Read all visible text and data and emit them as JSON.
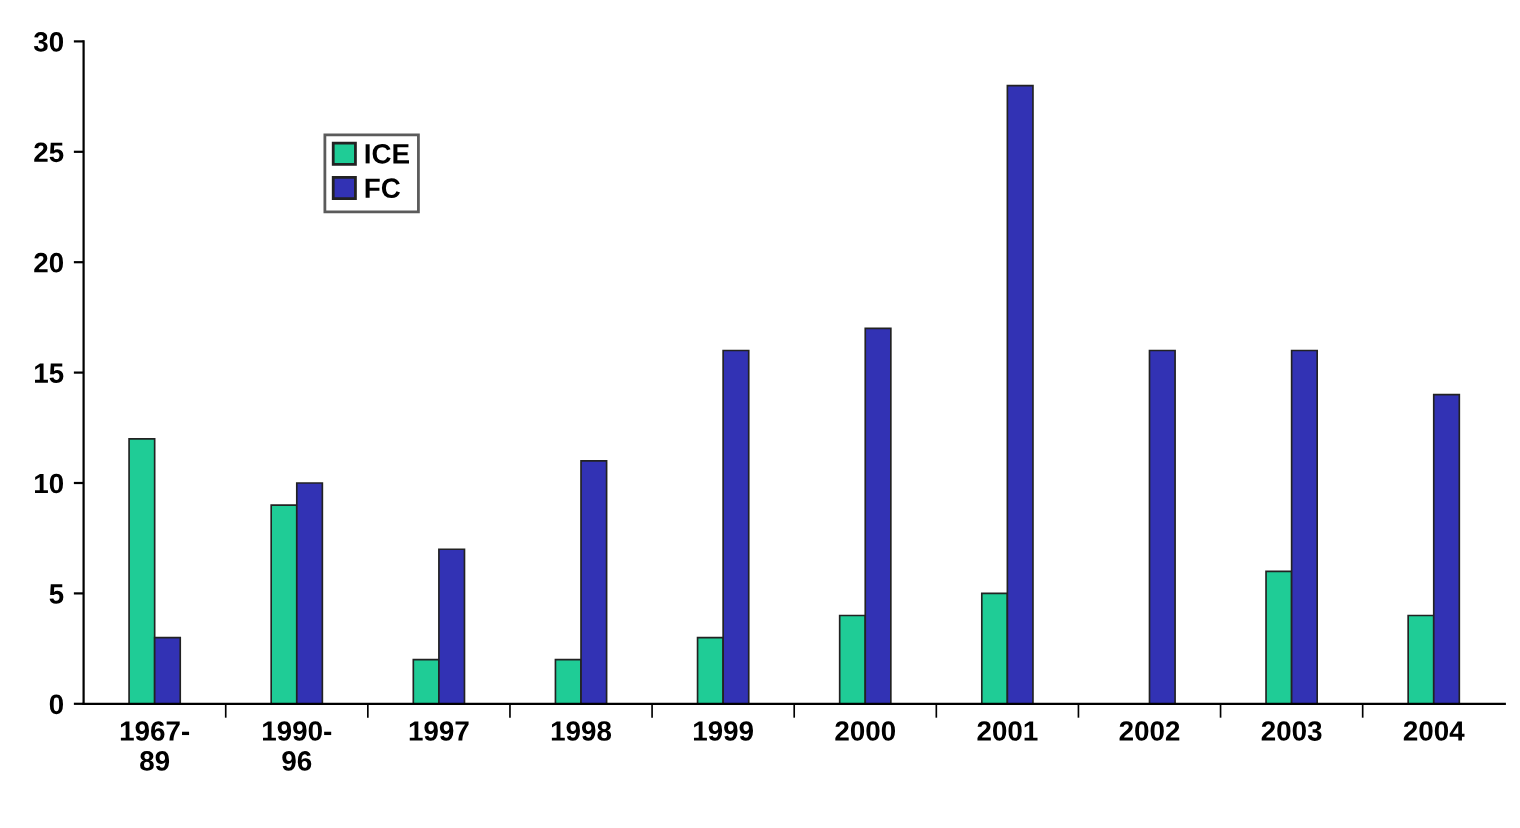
{
  "chart_data": {
    "type": "bar",
    "categories": [
      "1967-\n89",
      "1990-\n96",
      "1997",
      "1998",
      "1999",
      "2000",
      "2001",
      "2002",
      "2003",
      "2004"
    ],
    "series": [
      {
        "name": "ICE",
        "color": "#1fcc96",
        "values": [
          12,
          9,
          2,
          2,
          3,
          4,
          5,
          null,
          6,
          4
        ]
      },
      {
        "name": "FC",
        "color": "#3232b4",
        "values": [
          3,
          10,
          7,
          11,
          16,
          17,
          28,
          16,
          16,
          14
        ]
      }
    ],
    "ylim": [
      0,
      30
    ],
    "yticks": [
      0,
      5,
      10,
      15,
      20,
      25,
      30
    ],
    "grid": false,
    "legend": "top left"
  }
}
